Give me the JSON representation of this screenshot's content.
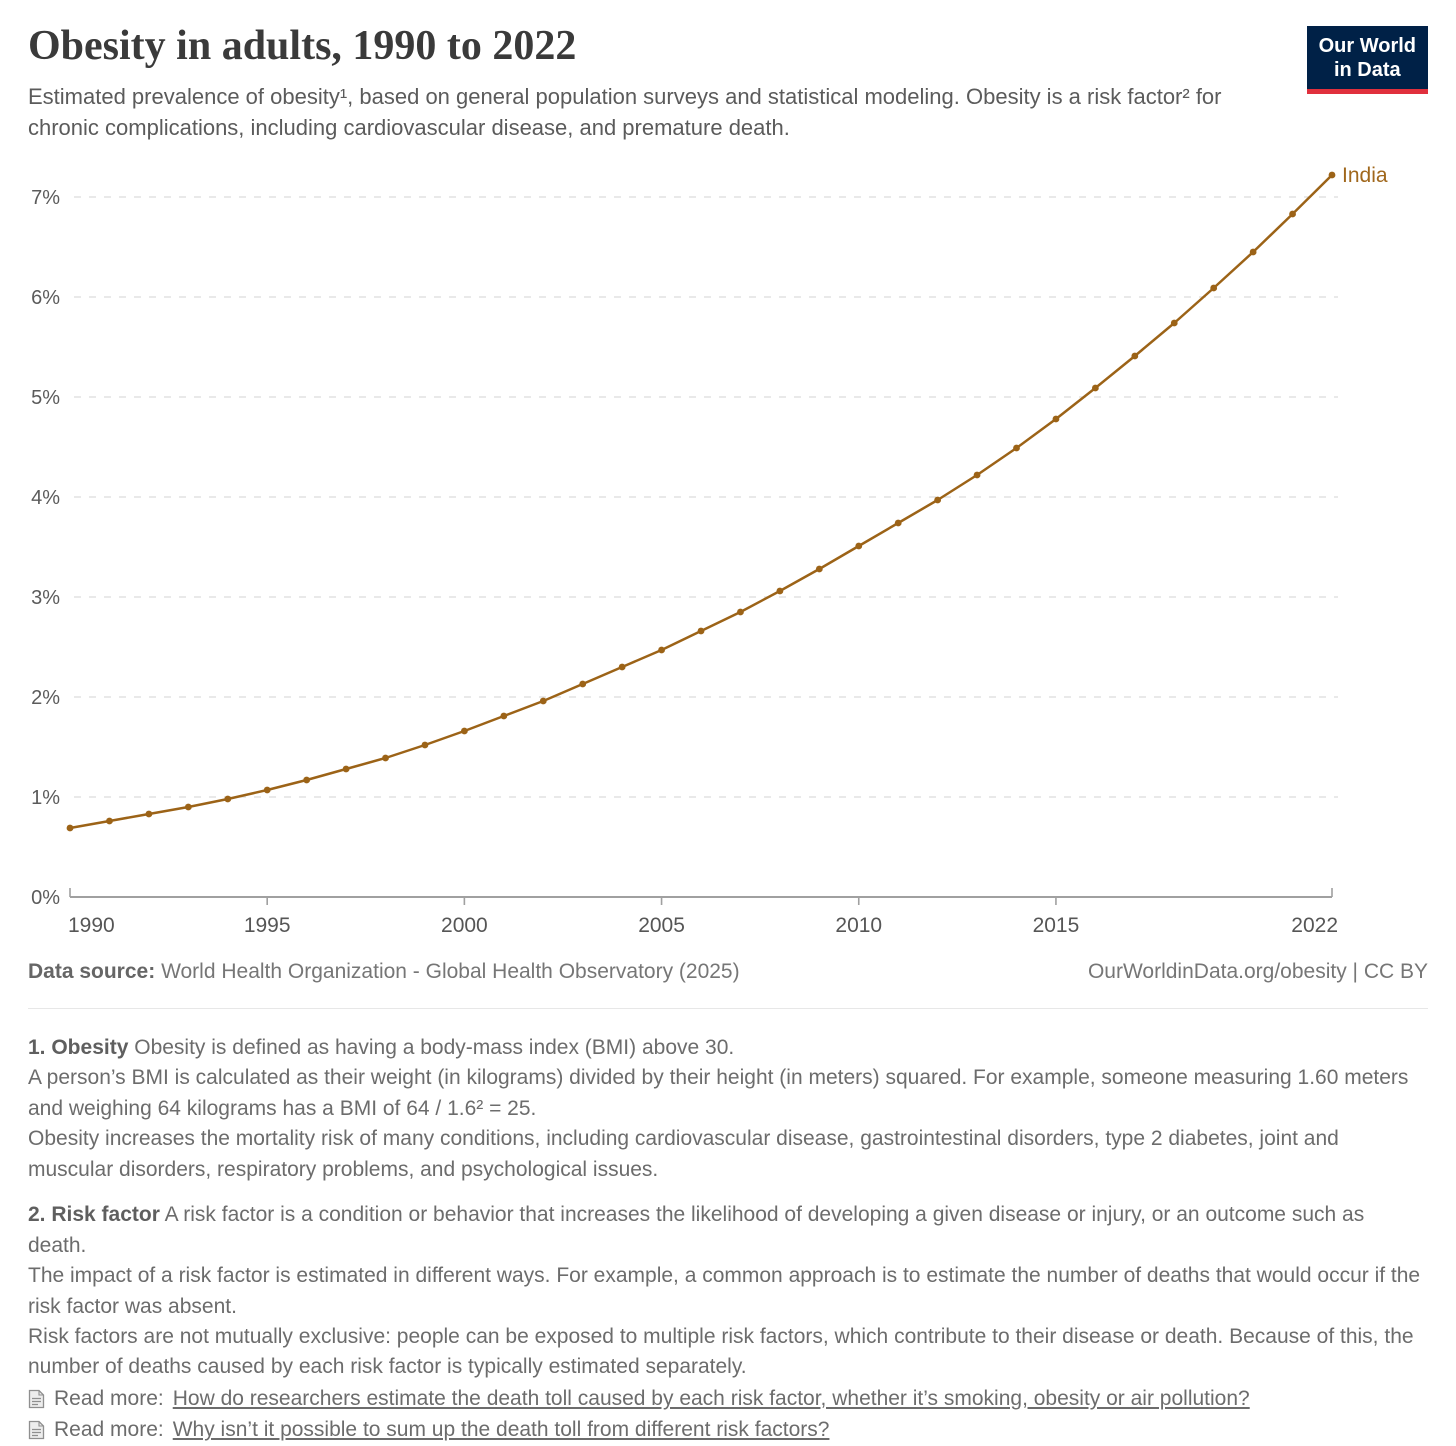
{
  "header": {
    "title": "Obesity in adults, 1990 to 2022",
    "subtitle": "Estimated prevalence of obesity¹, based on general population surveys and statistical modeling. Obesity is a risk factor² for chronic complications, including cardiovascular disease, and premature death.",
    "logo": {
      "line1": "Our World",
      "line2": "in Data",
      "bg_color": "#002147",
      "accent_color": "#e0303d"
    }
  },
  "chart_data": {
    "type": "line",
    "title": "Obesity in adults, 1990 to 2022",
    "xlabel": "",
    "ylabel": "",
    "grid": "horizontal-dashed",
    "legend_position": "end-of-line",
    "x_range": [
      1990,
      2022
    ],
    "ylim": [
      0,
      7.4
    ],
    "x_ticks": [
      1990,
      1995,
      2000,
      2005,
      2010,
      2015,
      2022
    ],
    "y_ticks": [
      "0%",
      "1%",
      "2%",
      "3%",
      "4%",
      "5%",
      "6%",
      "7%"
    ],
    "series": [
      {
        "name": "India",
        "color": "#9c6317",
        "label_color": "#a0671c",
        "x": [
          1990,
          1991,
          1992,
          1993,
          1994,
          1995,
          1996,
          1997,
          1998,
          1999,
          2000,
          2001,
          2002,
          2003,
          2004,
          2005,
          2006,
          2007,
          2008,
          2009,
          2010,
          2011,
          2012,
          2013,
          2014,
          2015,
          2016,
          2017,
          2018,
          2019,
          2020,
          2021,
          2022
        ],
        "values": [
          0.69,
          0.76,
          0.83,
          0.9,
          0.98,
          1.07,
          1.17,
          1.28,
          1.39,
          1.52,
          1.66,
          1.81,
          1.96,
          2.13,
          2.3,
          2.47,
          2.66,
          2.85,
          3.06,
          3.28,
          3.51,
          3.74,
          3.97,
          4.22,
          4.49,
          4.78,
          5.09,
          5.41,
          5.74,
          6.09,
          6.45,
          6.83,
          7.22
        ]
      }
    ]
  },
  "footer": {
    "data_source_label": "Data source:",
    "data_source_value": "World Health Organization - Global Health Observatory (2025)",
    "attribution": "OurWorldinData.org/obesity | CC BY"
  },
  "footnotes": {
    "note1": {
      "label": "1. Obesity",
      "text": "Obesity is defined as having a body-mass index (BMI) above 30.",
      "para2": "A person’s BMI is calculated as their weight (in kilograms) divided by their height (in meters) squared. For example, someone measuring 1.60 meters and weighing 64 kilograms has a BMI of 64 / 1.6² = 25.",
      "para3": "Obesity increases the mortality risk of many conditions, including cardiovascular disease, gastrointestinal disorders, type 2 diabetes, joint and muscular disorders, respiratory problems, and psychological issues."
    },
    "note2": {
      "label": "2. Risk factor",
      "text": "A risk factor is a condition or behavior that increases the likelihood of developing a given disease or injury, or an outcome such as death.",
      "para2": "The impact of a risk factor is estimated in different ways. For example, a common approach is to estimate the number of deaths that would occur if the risk factor was absent.",
      "para3": "Risk factors are not mutually exclusive: people can be exposed to multiple risk factors, which contribute to their disease or death. Because of this, the number of deaths caused by each risk factor is typically estimated separately.",
      "readmore": [
        {
          "prefix": "Read more:",
          "link": "How do researchers estimate the death toll caused by each risk factor, whether it’s smoking, obesity or air pollution?"
        },
        {
          "prefix": "Read more:",
          "link": "Why isn’t it possible to sum up the death toll from different risk factors?"
        }
      ]
    }
  }
}
